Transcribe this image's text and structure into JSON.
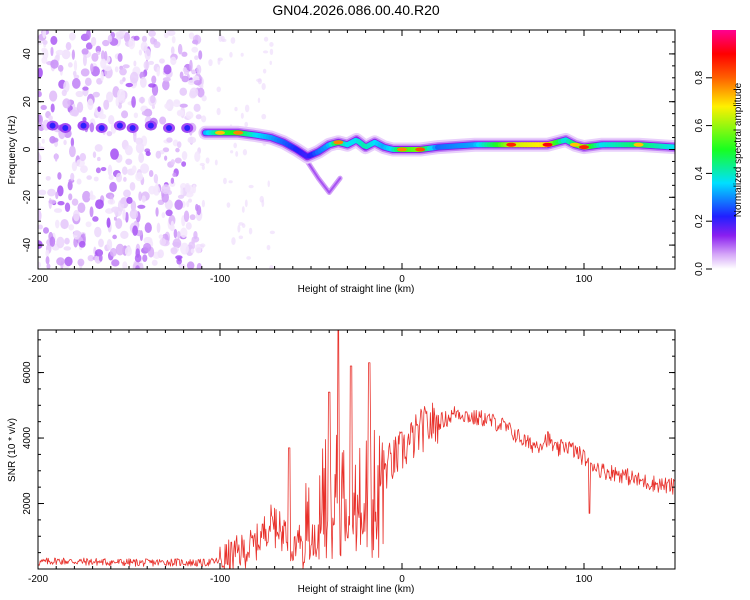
{
  "title": "GN04.2026.086.00.40.R20",
  "colors": {
    "line": "#e8302a",
    "axis": "#000000",
    "background": "#ffffff"
  },
  "chart_data": [
    {
      "type": "heatmap",
      "title": "GN04.2026.086.00.40.R20",
      "xlabel": "Height of straight line (km)",
      "ylabel": "Frequency (Hz)",
      "xlim": [
        -200,
        150
      ],
      "ylim": [
        -50,
        50
      ],
      "x_ticks": [
        -200,
        -100,
        0,
        100
      ],
      "y_ticks": [
        -40,
        -20,
        0,
        20,
        40
      ],
      "colorbar": {
        "label": "Normalized spectral amplitude",
        "range": [
          0,
          1
        ],
        "ticks": [
          "0.0",
          "0.2",
          "0.4",
          "0.6",
          "0.8"
        ],
        "colormap": [
          "#ffffff",
          "#d6a8f8",
          "#8a1ff0",
          "#2020ff",
          "#00e0ff",
          "#18ff20",
          "#fff000",
          "#ff6000",
          "#ff0000",
          "#ff0090"
        ]
      },
      "ridge": {
        "x": [
          -108,
          -100,
          -90,
          -80,
          -72,
          -65,
          -58,
          -52,
          -46,
          -40,
          -35,
          -30,
          -25,
          -20,
          -15,
          -10,
          -5,
          0,
          10,
          20,
          40,
          60,
          80,
          90,
          95,
          100,
          110,
          130,
          150
        ],
        "y": [
          7,
          7,
          7,
          6,
          5,
          3,
          0,
          -3,
          -1,
          2,
          3,
          2,
          4,
          1,
          3,
          1,
          0,
          0,
          0,
          1,
          2,
          2,
          2,
          4,
          2,
          1,
          2,
          2,
          1
        ],
        "amplitude": [
          0.55,
          0.7,
          0.75,
          0.6,
          0.55,
          0.5,
          0.45,
          0.4,
          0.5,
          0.55,
          0.75,
          0.6,
          0.6,
          0.65,
          0.6,
          0.55,
          0.6,
          0.75,
          0.8,
          0.5,
          0.55,
          0.85,
          0.9,
          0.6,
          0.7,
          0.85,
          0.6,
          0.7,
          0.6
        ]
      },
      "secondary_branch": {
        "x": [
          -52,
          -46,
          -40,
          -34
        ],
        "y": [
          -5,
          -12,
          -18,
          -12
        ]
      },
      "early_band": {
        "x": [
          -192,
          -185,
          -175,
          -165,
          -155,
          -148,
          -138,
          -128,
          -118
        ],
        "y": [
          10,
          9,
          10,
          9,
          10,
          9,
          10,
          9,
          9
        ]
      },
      "noise_region_x": [
        -200,
        -110
      ]
    },
    {
      "type": "line",
      "xlabel": "Height of straight line (km)",
      "ylabel": "SNR (10 * v/v)",
      "xlim": [
        -200,
        150
      ],
      "ylim": [
        0,
        7300
      ],
      "x_ticks": [
        -200,
        -100,
        0,
        100
      ],
      "y_ticks": [
        2000,
        4000,
        6000
      ],
      "x": [
        -200,
        -190,
        -180,
        -170,
        -160,
        -150,
        -140,
        -130,
        -120,
        -110,
        -100,
        -95,
        -90,
        -85,
        -80,
        -75,
        -70,
        -65,
        -60,
        -55,
        -50,
        -45,
        -40,
        -35,
        -30,
        -25,
        -20,
        -15,
        -10,
        -5,
        0,
        5,
        10,
        15,
        20,
        25,
        30,
        35,
        40,
        45,
        50,
        55,
        60,
        65,
        70,
        75,
        80,
        85,
        90,
        95,
        100,
        105,
        110,
        120,
        130,
        140,
        150
      ],
      "y": [
        200,
        250,
        230,
        220,
        210,
        200,
        190,
        210,
        200,
        180,
        250,
        350,
        500,
        600,
        800,
        1200,
        1600,
        1300,
        800,
        1000,
        1500,
        2200,
        2800,
        3000,
        2900,
        2700,
        2600,
        2800,
        3000,
        3300,
        3600,
        3900,
        4200,
        4400,
        4500,
        4600,
        4800,
        4700,
        4600,
        4600,
        4500,
        4400,
        4200,
        4000,
        3800,
        3800,
        4000,
        3600,
        3800,
        3600,
        3400,
        3200,
        3000,
        2900,
        2700,
        2600,
        2500
      ],
      "spikes": [
        {
          "x": -62,
          "y": 3700
        },
        {
          "x": -40,
          "y": 5400
        },
        {
          "x": -35,
          "y": 7300
        },
        {
          "x": -28,
          "y": 6200
        },
        {
          "x": -18,
          "y": 6300
        },
        {
          "x": 103,
          "y": 1700
        }
      ]
    }
  ]
}
